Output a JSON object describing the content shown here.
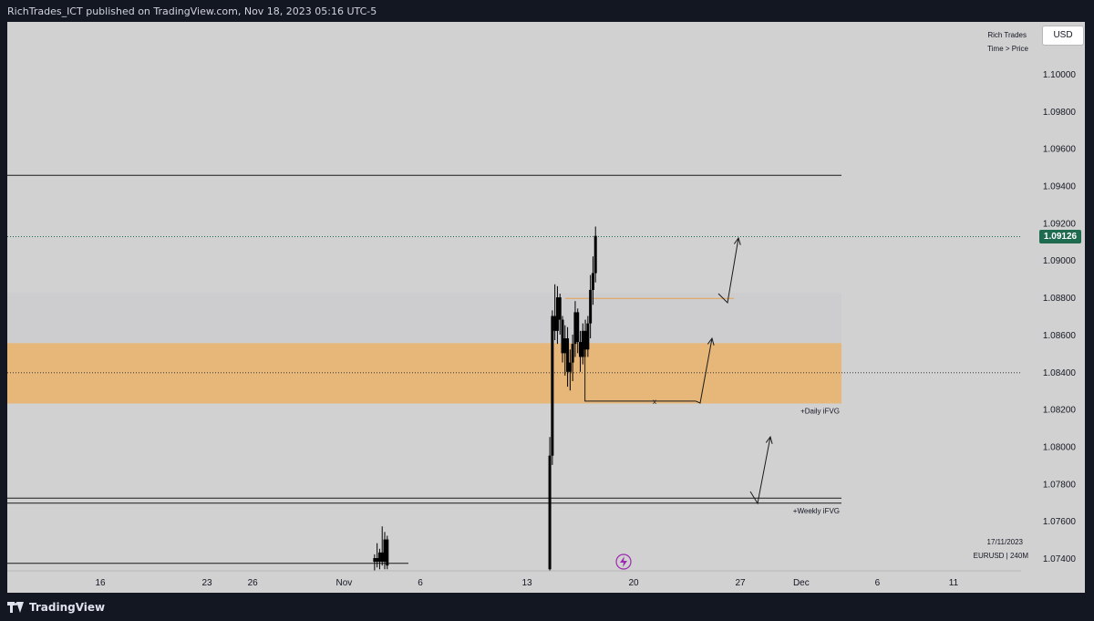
{
  "header": {
    "publish_line": "RichTrades_ICT published on TradingView.com, Nov 18, 2023 05:16 UTC-5"
  },
  "footer": {
    "brand": "TradingView"
  },
  "toolbar": {
    "currency_label": "USD"
  },
  "legend": {
    "author": "Rich Trades",
    "mode": "Time > Price"
  },
  "info": {
    "date": "17/11/2023",
    "symbol": "EURUSD | 240M"
  },
  "colors": {
    "background": "#131722",
    "chart_bg": "#d1d1d1",
    "upper_zone": "#cdcdcf",
    "fvg_zone": "#e7b679",
    "candle": "#000000",
    "price_badge": "#1e6b4f",
    "orange_line": "#e5a14f"
  },
  "chart_data": {
    "type": "candlestick",
    "symbol": "EURUSD",
    "timeframe": "240M",
    "current_price": 1.09126,
    "current_price_label": "1.09126",
    "y_ticks": [
      "1.10000",
      "1.09800",
      "1.09600",
      "1.09400",
      "1.09200",
      "1.09000",
      "1.08800",
      "1.08600",
      "1.08400",
      "1.08200",
      "1.08000",
      "1.07800",
      "1.07600",
      "1.07400"
    ],
    "y_tick_values": [
      1.1,
      1.098,
      1.096,
      1.094,
      1.092,
      1.09,
      1.088,
      1.086,
      1.084,
      1.082,
      1.08,
      1.078,
      1.076,
      1.074
    ],
    "x_ticks": [
      "16",
      "23",
      "26",
      "Nov",
      "6",
      "13",
      "20",
      "27",
      "Dec",
      "6",
      "11"
    ],
    "x_tick_dates": [
      "2023-10-16",
      "2023-10-23",
      "2023-10-26",
      "2023-11-01",
      "2023-11-06",
      "2023-11-13",
      "2023-11-20",
      "2023-11-27",
      "2023-12-01",
      "2023-12-06",
      "2023-12-11"
    ],
    "zones": [
      {
        "name": "upper-range",
        "from": 1.08554,
        "to": 1.08824
      },
      {
        "name": "daily-fvg",
        "label": "+Daily iFVG",
        "from": 1.0823,
        "to": 1.08554
      }
    ],
    "levels": [
      {
        "name": "resistance",
        "value": 1.09455
      },
      {
        "name": "fvg-mid",
        "value": 1.08395,
        "style": "dotted"
      },
      {
        "name": "weekly-fvg-top",
        "value": 1.07722
      },
      {
        "name": "weekly-fvg-bottom",
        "value": 1.07695,
        "label": "+Weekly iFVG"
      },
      {
        "name": "range-low",
        "value": 1.07372
      }
    ],
    "orange_level": 1.08794,
    "annotations": [
      {
        "name": "entry-marker",
        "text": "x",
        "date": "2023-11-21",
        "price": 1.08243
      }
    ],
    "candles": [
      {
        "date": "2023-11-03 00",
        "o": 1.0738,
        "h": 1.0742,
        "l": 1.0733,
        "c": 1.074
      },
      {
        "date": "2023-11-03 04",
        "o": 1.074,
        "h": 1.0748,
        "l": 1.0735,
        "c": 1.0738
      },
      {
        "date": "2023-11-03 08",
        "o": 1.0738,
        "h": 1.0745,
        "l": 1.0734,
        "c": 1.0743
      },
      {
        "date": "2023-11-03 12",
        "o": 1.0743,
        "h": 1.0757,
        "l": 1.0736,
        "c": 1.0738
      },
      {
        "date": "2023-11-03 16",
        "o": 1.0738,
        "h": 1.0754,
        "l": 1.0734,
        "c": 1.075
      },
      {
        "date": "2023-11-03 20",
        "o": 1.075,
        "h": 1.0752,
        "l": 1.0734,
        "c": 1.0736
      },
      {
        "date": "2023-11-14 12",
        "o": 1.0734,
        "h": 1.0805,
        "l": 1.0733,
        "c": 1.0795
      },
      {
        "date": "2023-11-14 16",
        "o": 1.0795,
        "h": 1.0873,
        "l": 1.079,
        "c": 1.087
      },
      {
        "date": "2023-11-14 20",
        "o": 1.087,
        "h": 1.0887,
        "l": 1.0857,
        "c": 1.0862
      },
      {
        "date": "2023-11-15 00",
        "o": 1.0862,
        "h": 1.0886,
        "l": 1.0855,
        "c": 1.088
      },
      {
        "date": "2023-11-15 04",
        "o": 1.088,
        "h": 1.0882,
        "l": 1.086,
        "c": 1.0868
      },
      {
        "date": "2023-11-15 08",
        "o": 1.0868,
        "h": 1.087,
        "l": 1.0845,
        "c": 1.085
      },
      {
        "date": "2023-11-15 12",
        "o": 1.085,
        "h": 1.0865,
        "l": 1.0838,
        "c": 1.0858
      },
      {
        "date": "2023-11-15 16",
        "o": 1.0858,
        "h": 1.0864,
        "l": 1.0832,
        "c": 1.084
      },
      {
        "date": "2023-11-15 20",
        "o": 1.084,
        "h": 1.0852,
        "l": 1.083,
        "c": 1.0845
      },
      {
        "date": "2023-11-16 00",
        "o": 1.0845,
        "h": 1.086,
        "l": 1.0835,
        "c": 1.0855
      },
      {
        "date": "2023-11-16 04",
        "o": 1.0855,
        "h": 1.0878,
        "l": 1.0848,
        "c": 1.0872
      },
      {
        "date": "2023-11-16 08",
        "o": 1.0872,
        "h": 1.0874,
        "l": 1.085,
        "c": 1.0856
      },
      {
        "date": "2023-11-16 12",
        "o": 1.0856,
        "h": 1.0862,
        "l": 1.084,
        "c": 1.0848
      },
      {
        "date": "2023-11-16 16",
        "o": 1.0848,
        "h": 1.0866,
        "l": 1.0844,
        "c": 1.0862
      },
      {
        "date": "2023-11-16 20",
        "o": 1.0862,
        "h": 1.0868,
        "l": 1.0848,
        "c": 1.0852
      },
      {
        "date": "2023-11-17 00",
        "o": 1.0852,
        "h": 1.087,
        "l": 1.0848,
        "c": 1.0866
      },
      {
        "date": "2023-11-17 04",
        "o": 1.0866,
        "h": 1.0892,
        "l": 1.0858,
        "c": 1.0884
      },
      {
        "date": "2023-11-17 08",
        "o": 1.0884,
        "h": 1.0902,
        "l": 1.0876,
        "c": 1.0893
      },
      {
        "date": "2023-11-17 12",
        "o": 1.0893,
        "h": 1.0918,
        "l": 1.0888,
        "c": 1.0913
      }
    ]
  }
}
